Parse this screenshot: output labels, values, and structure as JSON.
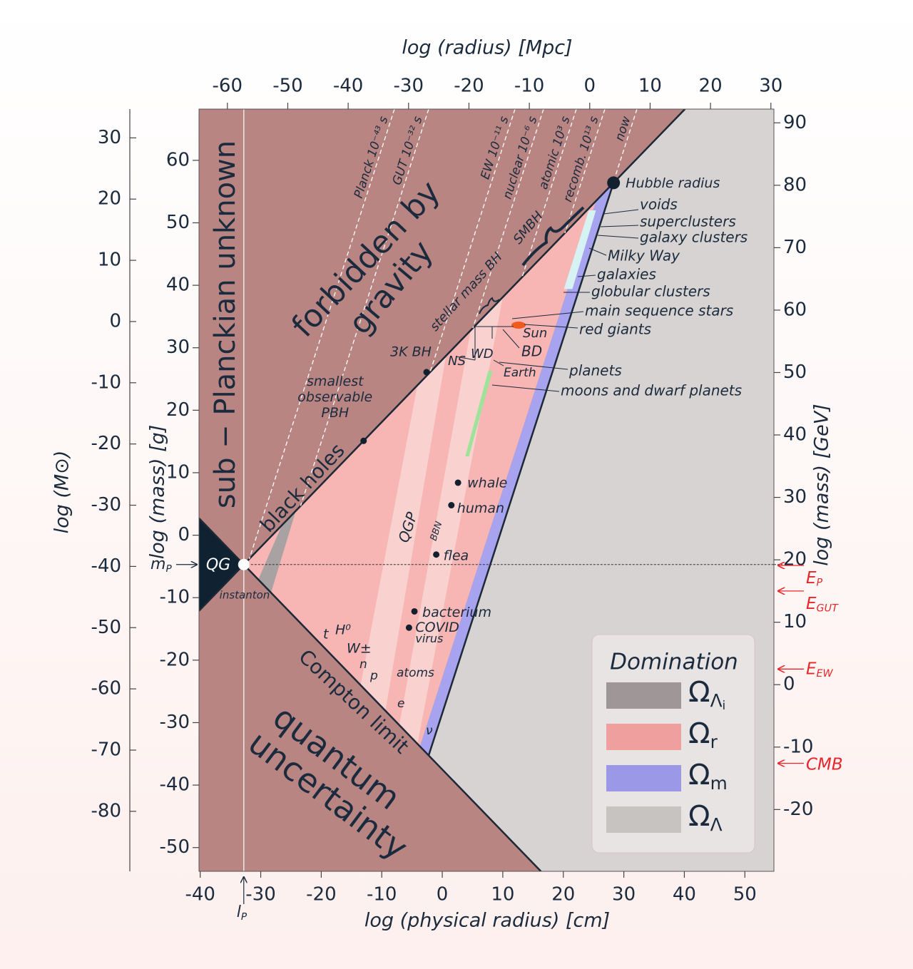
{
  "chart_data": {
    "type": "region",
    "xlabel": "log (physical radius) [cm]",
    "x2label": "log (radius) [Mpc]",
    "ylabel": "log (mass) [g]",
    "y3label": "log (M⊙)",
    "y2label": "log (mass) [GeV]",
    "xlim": [
      -40.2,
      54.8
    ],
    "xticks": [
      -40,
      -30,
      -20,
      -10,
      0,
      10,
      20,
      30,
      40,
      50
    ],
    "x2lim": [
      -64.7,
      30.5
    ],
    "x2ticks": [
      -60,
      -50,
      -40,
      -30,
      -20,
      -10,
      0,
      10,
      20,
      30
    ],
    "ylim": [
      -53.8,
      68.2
    ],
    "yticks": [
      -50,
      -40,
      -30,
      -20,
      -10,
      0,
      10,
      20,
      30,
      40,
      50,
      60
    ],
    "y3lim": [
      -89.8,
      34.7
    ],
    "y3ticks": [
      -80,
      -70,
      -60,
      -50,
      -40,
      -30,
      -20,
      -10,
      0,
      10,
      20,
      30
    ],
    "y2lim": [
      -29.9,
      92.2
    ],
    "y2ticks": [
      -20,
      -10,
      0,
      10,
      20,
      30,
      40,
      50,
      60,
      70,
      80,
      90
    ],
    "background": "#b88583",
    "regions": [
      {
        "color": "#d7d3d2",
        "x": [
          -2.25,
          28.3,
          40.1,
          54.8,
          54.8,
          16.3
        ],
        "y": [
          -35.25,
          56.4,
          68.2,
          68.2,
          -53.8,
          -53.8
        ]
      },
      {
        "color": "#f7b6b4",
        "x": [
          -32.8,
          25.45,
          -3.68
        ],
        "y": [
          -4.7,
          53.55,
          -33.8
        ]
      },
      {
        "color": "#f9d2d0",
        "x": [
          -13.5,
          -4.1,
          0.6,
          -9.4
        ],
        "y": [
          -24.0,
          24.0,
          28.7,
          -28.1
        ]
      },
      {
        "color": "#f9d2d0",
        "x": [
          -7.1,
          4.7,
          10.0,
          -4.1
        ],
        "y": [
          -30.4,
          32.8,
          38.1,
          -33.4
        ]
      },
      {
        "color": "#a8a2a2",
        "x": [
          -30.4,
          -26.5,
          -24.2,
          -28.3
        ],
        "y": [
          -7.1,
          1.6,
          3.9,
          -9.2
        ]
      },
      {
        "color": "#a7a3ee",
        "x": [
          -3.68,
          25.45,
          28.3,
          -2.25
        ],
        "y": [
          -33.8,
          53.55,
          56.4,
          -35.25
        ]
      },
      {
        "color": "#9fe39a",
        "x": [
          3.8,
          4.4,
          8.3,
          7.6
        ],
        "y": [
          12.6,
          12.6,
          26.3,
          26.3
        ]
      },
      {
        "color": "#d6f2f2",
        "x": [
          20.1,
          21.5,
          25.4,
          24.2
        ],
        "y": [
          39.4,
          39.4,
          52.0,
          52.0
        ]
      },
      {
        "color": "#0e2232",
        "x": [
          -40.2,
          -32.8,
          -40.2
        ],
        "y": [
          2.7,
          -4.7,
          -12.1
        ]
      }
    ],
    "boundaries": [
      {
        "color": "#1c2836",
        "x": [
          -40.2,
          40.1
        ],
        "y": [
          -12.1,
          68.2
        ]
      },
      {
        "color": "#1c2836",
        "x": [
          -40.2,
          16.3
        ],
        "y": [
          2.7,
          -53.8
        ]
      },
      {
        "color": "#1c2836",
        "x": [
          -2.25,
          28.3
        ],
        "y": [
          -35.25,
          56.4
        ]
      }
    ],
    "planck_mass": {
      "label": "m",
      "sub": "P",
      "value": -4.7
    },
    "planck_length": {
      "label": "l",
      "sub": "P",
      "value": -32.8
    },
    "energy_color": "#e8262a",
    "energies": [
      {
        "label": "E",
        "sub": "P",
        "value": 19.1
      },
      {
        "label": "E",
        "sub": "GUT",
        "value": 15.0
      },
      {
        "label": "E",
        "sub": "EW",
        "value": 2.5
      },
      {
        "label": "CMB",
        "value": -12.6
      }
    ],
    "objects": {
      "color": "#13202e",
      "labels": [
        "whale",
        "human",
        "flea",
        "bacterium",
        [
          "COVID",
          "virus"
        ],
        "3K BH",
        [
          "smallest",
          "observable",
          "PBH"
        ],
        "Hubble radius"
      ],
      "x": [
        2.6,
        1.5,
        -1.0,
        -4.6,
        -5.5,
        -2.6,
        -13.0,
        28.3
      ],
      "y": [
        8.4,
        4.8,
        -3.1,
        -12.2,
        -14.8,
        26.1,
        15.1,
        56.4
      ]
    },
    "region_labels": [
      "sub − Planckian unknown",
      "forbidden by",
      "gravity",
      "black holes",
      "Compton limit",
      "quantum",
      "uncertainty",
      "QG",
      "instanton",
      "QGP",
      "BBN"
    ],
    "epochs": [
      "Planck 10⁻⁴³ s",
      "GUT 10⁻³² s",
      "EW 10⁻¹¹ s",
      "nuclear 10⁻⁶ s",
      "atomic 10³ s",
      "recomb. 10¹³ s",
      "now"
    ],
    "annotations": [
      "voids",
      "superclusters",
      "galaxy clusters",
      "Milky Way",
      "galaxies",
      "globular clusters",
      "main sequence stars",
      "red giants",
      "Sun",
      "BD",
      "NS",
      "WD",
      "Earth",
      "planets",
      "moons and dwarf planets",
      "stellar mass BH",
      "SMBH",
      "t",
      "H⁰",
      "W±",
      "n",
      "p",
      "atoms",
      "e",
      "ν"
    ],
    "legend": {
      "title": "Domination",
      "position": "lower right",
      "entries": [
        {
          "symbol": "Ω",
          "sub": "Λ",
          "subsub": "i",
          "color": "#9e9697"
        },
        {
          "symbol": "Ω",
          "sub": "r",
          "color": "#ee9f9e"
        },
        {
          "symbol": "Ω",
          "sub": "m",
          "color": "#9c98e8"
        },
        {
          "symbol": "Ω",
          "sub": "Λ",
          "color": "#c7c3c1"
        }
      ]
    }
  }
}
